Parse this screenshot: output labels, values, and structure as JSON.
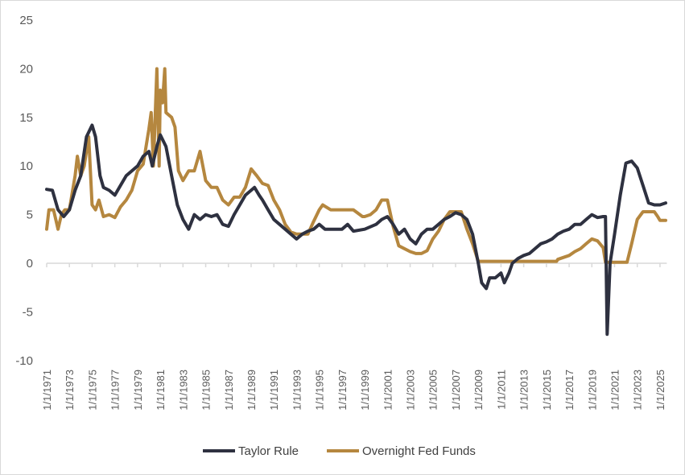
{
  "chart_data": {
    "type": "line",
    "title": "",
    "xlabel": "",
    "ylabel": "",
    "ylim": [
      -10,
      25
    ],
    "yticks": [
      "25",
      "20",
      "15",
      "10",
      "5",
      "0",
      "-5",
      "-10"
    ],
    "ytick_values": [
      25,
      20,
      15,
      10,
      5,
      0,
      -5,
      -10
    ],
    "xlim": [
      1971,
      2025.6
    ],
    "xtick_labels": [
      "1/1/1971",
      "1/1/1973",
      "1/1/1975",
      "1/1/1977",
      "1/1/1979",
      "1/1/1981",
      "1/1/1983",
      "1/1/1985",
      "1/1/1987",
      "1/1/1989",
      "1/1/1991",
      "1/1/1993",
      "1/1/1995",
      "1/1/1997",
      "1/1/1999",
      "1/1/2001",
      "1/1/2003",
      "1/1/2005",
      "1/1/2007",
      "1/1/2009",
      "1/1/2011",
      "1/1/2013",
      "1/1/2015",
      "1/1/2017",
      "1/1/2019",
      "1/1/2021",
      "1/1/2023",
      "1/1/2025"
    ],
    "grid": false,
    "legend_position": "bottom",
    "series": [
      {
        "name": "Taylor Rule",
        "color": "#2e3140",
        "x": [
          1971,
          1971.5,
          1972,
          1972.5,
          1973,
          1973.5,
          1974,
          1974.5,
          1975,
          1975.3,
          1975.7,
          1976,
          1976.5,
          1977,
          1977.5,
          1978,
          1978.5,
          1979,
          1979.5,
          1980,
          1980.3,
          1980.7,
          1981,
          1981.5,
          1982,
          1982.5,
          1983,
          1983.5,
          1984,
          1984.5,
          1985,
          1985.5,
          1986,
          1986.5,
          1987,
          1987.5,
          1988,
          1988.5,
          1989,
          1989.3,
          1989.7,
          1990,
          1990.5,
          1991,
          1991.5,
          1992,
          1992.5,
          1993,
          1993.5,
          1994,
          1994.5,
          1995,
          1995.5,
          1996,
          1997,
          1997.5,
          1998,
          1999,
          2000,
          2000.5,
          2001,
          2001.5,
          2002,
          2002.5,
          2003,
          2003.5,
          2004,
          2004.5,
          2005,
          2005.5,
          2006,
          2006.5,
          2007,
          2007.5,
          2008,
          2008.5,
          2009,
          2009.3,
          2009.7,
          2010,
          2010.5,
          2011,
          2011.3,
          2011.7,
          2012,
          2012.5,
          2013,
          2013.5,
          2014,
          2014.5,
          2015,
          2015.5,
          2016,
          2016.5,
          2017,
          2017.5,
          2018,
          2018.5,
          2019,
          2019.5,
          2020,
          2020.2,
          2020.35,
          2020.6,
          2021,
          2021.5,
          2022,
          2022.5,
          2023,
          2023.5,
          2024,
          2024.5,
          2025,
          2025.5
        ],
        "y": [
          7.6,
          7.5,
          5.5,
          4.8,
          5.5,
          7.5,
          9,
          13,
          14.2,
          13,
          9,
          7.8,
          7.5,
          7,
          8,
          9,
          9.5,
          10,
          11,
          11.5,
          10,
          12,
          13.2,
          12,
          9,
          6,
          4.5,
          3.5,
          5,
          4.5,
          5,
          4.8,
          5,
          4,
          3.8,
          5,
          6,
          7,
          7.5,
          7.8,
          7,
          6.5,
          5.5,
          4.5,
          4,
          3.5,
          3,
          2.5,
          3,
          3.3,
          3.5,
          4,
          3.5,
          3.5,
          3.5,
          4,
          3.3,
          3.5,
          4,
          4.5,
          4.8,
          4,
          3,
          3.5,
          2.5,
          2,
          3,
          3.5,
          3.5,
          4,
          4.5,
          4.8,
          5.2,
          5,
          4.5,
          3,
          0,
          -2,
          -2.6,
          -1.5,
          -1.5,
          -1,
          -2,
          -1,
          0,
          0.5,
          0.8,
          1,
          1.5,
          2,
          2.2,
          2.5,
          3,
          3.3,
          3.5,
          4,
          4,
          4.5,
          5,
          4.7,
          4.8,
          4.8,
          -7.3,
          0,
          3,
          7,
          10.3,
          10.5,
          9.8,
          8,
          6.2,
          6,
          6,
          6.2
        ]
      },
      {
        "name": "Overnight Fed Funds",
        "color": "#b5873f",
        "x": [
          1971,
          1971.2,
          1971.6,
          1972,
          1972.3,
          1972.6,
          1973,
          1973.5,
          1973.7,
          1974,
          1974.3,
          1974.7,
          1975,
          1975.3,
          1975.6,
          1976,
          1976.5,
          1977,
          1977.5,
          1978,
          1978.5,
          1979,
          1979.5,
          1980,
          1980.2,
          1980.4,
          1980.7,
          1980.9,
          1981,
          1981.2,
          1981.4,
          1981.5,
          1982,
          1982.3,
          1982.6,
          1983,
          1983.5,
          1984,
          1984.5,
          1985,
          1985.5,
          1986,
          1986.5,
          1987,
          1987.5,
          1988,
          1988.5,
          1989,
          1989.5,
          1990,
          1990.5,
          1991,
          1991.5,
          1992,
          1992.5,
          1993,
          1994,
          1994.5,
          1995,
          1995.3,
          1996,
          1997,
          1998,
          1998.8,
          1999,
          1999.5,
          2000,
          2000.5,
          2001,
          2001.5,
          2002,
          2003,
          2003.5,
          2004,
          2004.5,
          2005,
          2005.5,
          2006,
          2006.5,
          2007,
          2007.5,
          2008,
          2008.5,
          2009,
          2015.9,
          2016,
          2017,
          2017.5,
          2018,
          2018.5,
          2019,
          2019.5,
          2020,
          2020.2,
          2022.1,
          2022.5,
          2023,
          2023.5,
          2024.5,
          2024.8,
          2025,
          2025.5
        ],
        "y": [
          3.5,
          5.5,
          5.5,
          3.5,
          5,
          5.5,
          5.5,
          9,
          11,
          9,
          10,
          13,
          6,
          5.5,
          6.5,
          4.8,
          5,
          4.7,
          5.8,
          6.5,
          7.5,
          9.5,
          10.2,
          13.8,
          15.5,
          10,
          20,
          10,
          17.8,
          16.5,
          20,
          15.5,
          15,
          14,
          9.5,
          8.5,
          9.5,
          9.5,
          11.5,
          8.5,
          7.8,
          7.8,
          6.5,
          6,
          6.8,
          6.8,
          7.8,
          9.7,
          9,
          8.2,
          8,
          6.5,
          5.5,
          4,
          3.2,
          3,
          3,
          4.3,
          5.5,
          6,
          5.5,
          5.5,
          5.5,
          4.8,
          4.8,
          5,
          5.5,
          6.5,
          6.5,
          3.8,
          1.8,
          1.2,
          1,
          1,
          1.3,
          2.5,
          3.3,
          4.5,
          5.3,
          5.3,
          5.3,
          3.5,
          2,
          0.2,
          0.2,
          0.4,
          0.8,
          1.2,
          1.5,
          2,
          2.5,
          2.3,
          1.6,
          0.1,
          0.1,
          2,
          4.5,
          5.3,
          5.3,
          4.8,
          4.4,
          4.4
        ]
      }
    ]
  }
}
